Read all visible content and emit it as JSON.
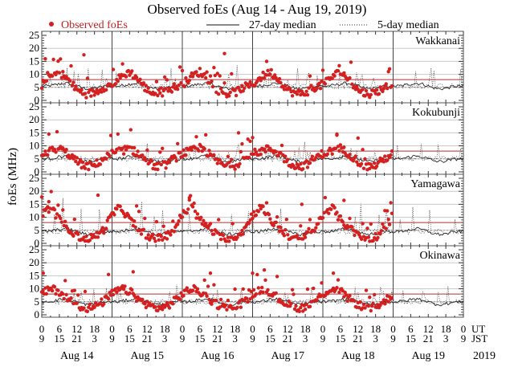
{
  "chart_data": {
    "type": "scatter",
    "title": "Observed foEs (Aug 14 - Aug 19, 2019)",
    "ylabel": "foEs (MHz)",
    "xlabel": "",
    "ylim": [
      0,
      25
    ],
    "yticks": [
      "0",
      "5",
      "10",
      "15",
      "20",
      "25"
    ],
    "grid": true,
    "legend_position": "top",
    "legend": [
      {
        "label": "Observed foEs",
        "style": "red-dot",
        "color": "#d42020"
      },
      {
        "label": "27-day median",
        "style": "solid-line",
        "color": "#111111"
      },
      {
        "label": "5-day median",
        "style": "dotted-line",
        "color": "#333333"
      }
    ],
    "x_ut_ticks": [
      "0",
      "6",
      "12",
      "18",
      "0",
      "6",
      "12",
      "18",
      "0",
      "6",
      "12",
      "18",
      "0",
      "6",
      "12",
      "18",
      "0",
      "6",
      "12",
      "18",
      "0",
      "6",
      "12",
      "18",
      "0"
    ],
    "x_jst_ticks": [
      "9",
      "15",
      "21",
      "3",
      "9",
      "15",
      "21",
      "3",
      "9",
      "15",
      "21",
      "3",
      "9",
      "15",
      "21",
      "3",
      "9",
      "15",
      "21",
      "3",
      "9",
      "15",
      "21",
      "3",
      "9"
    ],
    "x_axis_row_labels": [
      "UT",
      "JST"
    ],
    "days": [
      "Aug 14",
      "Aug 15",
      "Aug 16",
      "Aug 17",
      "Aug 18",
      "Aug 19"
    ],
    "year": "2019",
    "reference_line_high_mhz": 8,
    "reference_line_low_mhz": 5,
    "colors": {
      "observed": "#d42020",
      "reference_red": "#b03030",
      "grid": "#c8c8c8"
    },
    "stations": [
      {
        "name": "Wakkanai",
        "observed_daily_profile": [
          6,
          9,
          11,
          8,
          4,
          2.5,
          3,
          5
        ],
        "observed_peaks": [
          [
            0.05,
            16
          ],
          [
            0.6,
            17.5
          ],
          [
            2.6,
            18
          ],
          [
            3.2,
            15
          ],
          [
            1.15,
            14
          ]
        ],
        "observed_end_day": 5.0,
        "median27": 5.5,
        "median5_spike_amplitude": 5
      },
      {
        "name": "Kokubunji",
        "observed_daily_profile": [
          7,
          8,
          9,
          7,
          4,
          2,
          2.5,
          5
        ],
        "observed_peaks": [
          [
            0.1,
            14.5
          ],
          [
            2.8,
            15
          ],
          [
            4.2,
            14.5
          ],
          [
            4.5,
            13
          ]
        ],
        "observed_end_day": 5.0,
        "median27": 5,
        "median5_spike_amplitude": 4
      },
      {
        "name": "Yamagawa",
        "observed_daily_profile": [
          11,
          14,
          9,
          6,
          3,
          1.5,
          2.5,
          5
        ],
        "observed_peaks": [
          [
            0.1,
            16
          ],
          [
            0.8,
            18.5
          ],
          [
            2.1,
            17.5
          ],
          [
            3.7,
            15
          ],
          [
            4.3,
            16.5
          ]
        ],
        "observed_end_day": 5.0,
        "median27": 4.5,
        "median5_spike_amplitude": 8
      },
      {
        "name": "Okinawa",
        "observed_daily_profile": [
          8,
          10,
          9,
          6,
          4,
          2.5,
          3,
          5
        ],
        "observed_peaks": [
          [
            0.02,
            16
          ],
          [
            0.95,
            15.5
          ],
          [
            1.3,
            16.5
          ],
          [
            2.4,
            16
          ],
          [
            3.0,
            16
          ],
          [
            4.15,
            16
          ]
        ],
        "observed_end_day": 5.0,
        "median27": 5,
        "median5_spike_amplitude": 4
      }
    ]
  }
}
